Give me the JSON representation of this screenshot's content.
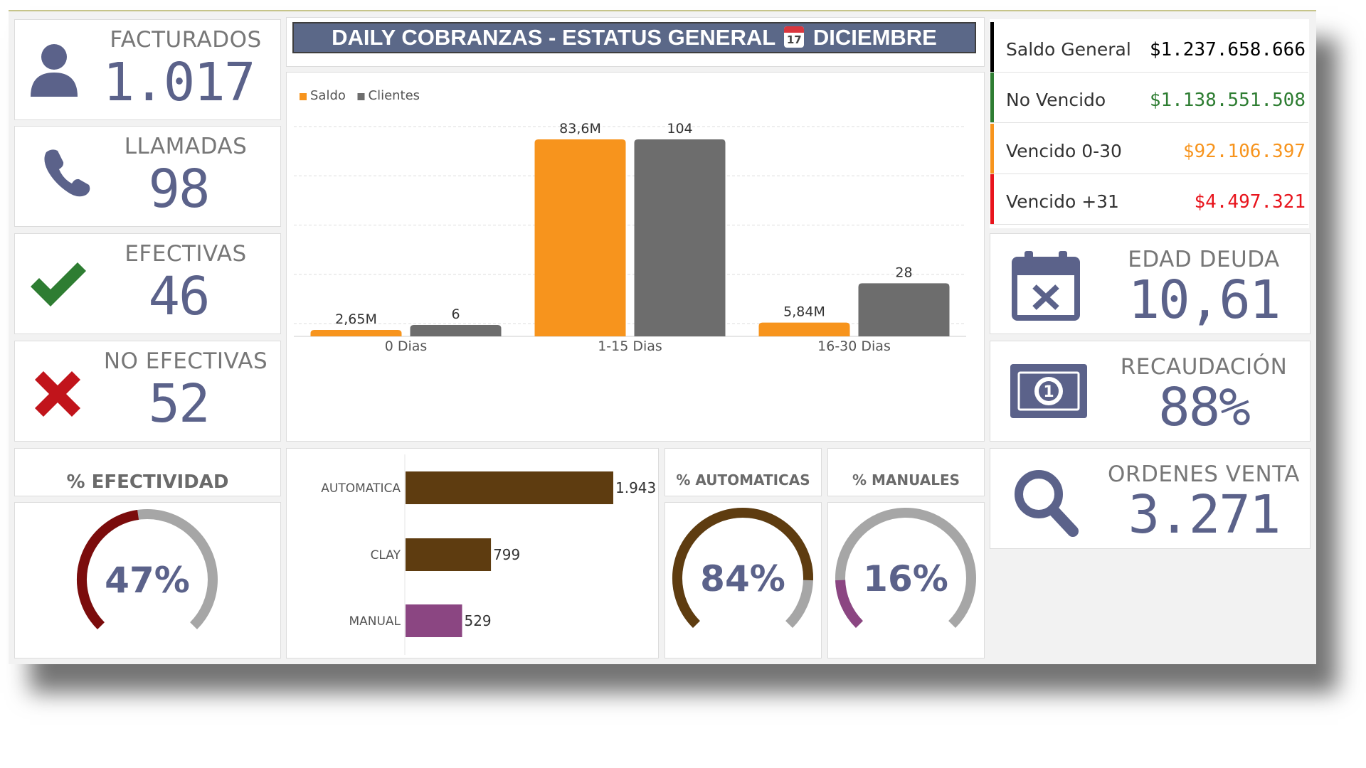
{
  "title": {
    "text_before": "DAILY COBRANZAS - ESTATUS GENERAL",
    "calendar_emoji_day": "17",
    "text_after": "DICIEMBRE"
  },
  "kpis_left": [
    {
      "label": "FACTURADOS",
      "value": "1.017",
      "icon": "user-icon"
    },
    {
      "label": "LLAMADAS",
      "value": "98",
      "icon": "phone-icon"
    },
    {
      "label": "EFECTIVAS",
      "value": "46",
      "icon": "checkmark-icon"
    },
    {
      "label": "NO EFECTIVAS",
      "value": "52",
      "icon": "x-mark-icon"
    }
  ],
  "status": [
    {
      "label": "Saldo General",
      "value": "$1.237.658.666",
      "color": "#000000"
    },
    {
      "label": "No Vencido",
      "value": "$1.138.551.508",
      "color": "#2e7d32"
    },
    {
      "label": "Vencido 0-30",
      "value": "$92.106.397",
      "color": "#f7941d"
    },
    {
      "label": "Vencido +31",
      "value": "$4.497.321",
      "color": "#e8141c"
    }
  ],
  "kpis_right": [
    {
      "label": "EDAD DEUDA",
      "value": "10,61",
      "icon": "calendar-x-icon"
    },
    {
      "label": "RECAUDACIÓN",
      "value": "88%",
      "icon": "banknote-icon"
    },
    {
      "label": "ORDENES VENTA",
      "value": "3.271",
      "icon": "search-icon"
    }
  ],
  "gauges": [
    {
      "header": "% EFECTIVIDAD",
      "label": "47%",
      "value": 47,
      "color": "#7b0c0c",
      "track": "#a6a6a6"
    },
    {
      "header": "% AUTOMATICAS",
      "label": "84%",
      "value": 84,
      "color": "#5e3c10",
      "track": "#a6a6a6"
    },
    {
      "header": "% MANUALES",
      "label": "16%",
      "value": 16,
      "color": "#8b4682",
      "track": "#a6a6a6"
    }
  ],
  "chart_data": [
    {
      "type": "bar",
      "categories": [
        "0 Dias",
        "1-15 Dias",
        "16-30 Dias"
      ],
      "series": [
        {
          "name": "Saldo",
          "values": [
            2.65,
            83.6,
            5.84
          ],
          "labels": [
            "2,65M",
            "83,6M",
            "5,84M"
          ],
          "color": "#f7941d"
        },
        {
          "name": "Clientes",
          "values": [
            6,
            104,
            28
          ],
          "labels": [
            "6",
            "104",
            "28"
          ],
          "color": "#6d6d6d"
        }
      ],
      "legend": "top-left",
      "grid": true
    },
    {
      "type": "bar",
      "orientation": "horizontal",
      "categories": [
        "AUTOMATICA",
        "CLAY",
        "MANUAL"
      ],
      "values": [
        1943,
        799,
        529
      ],
      "labels": [
        "1.943",
        "799",
        "529"
      ],
      "colors": [
        "#5e3c10",
        "#5e3c10",
        "#8b4682"
      ]
    }
  ]
}
